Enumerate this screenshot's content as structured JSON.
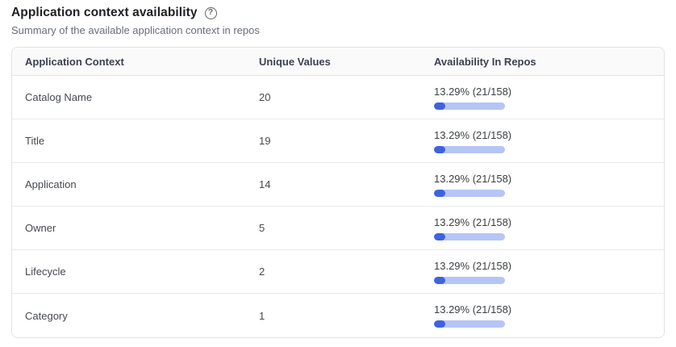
{
  "page": {
    "title": "Application context availability",
    "subtitle": "Summary of the available application context in repos",
    "help_icon_glyph": "?"
  },
  "table": {
    "columns": [
      "Application Context",
      "Unique Values",
      "Availability In Repos"
    ],
    "rows": [
      {
        "label": "Catalog Name",
        "unique_values": "20",
        "availability": {
          "label": "13.29% (21/158)",
          "percent": 13.29,
          "count": 21,
          "total": 158
        }
      },
      {
        "label": "Title",
        "unique_values": "19",
        "availability": {
          "label": "13.29% (21/158)",
          "percent": 13.29,
          "count": 21,
          "total": 158
        }
      },
      {
        "label": "Application",
        "unique_values": "14",
        "availability": {
          "label": "13.29% (21/158)",
          "percent": 13.29,
          "count": 21,
          "total": 158
        }
      },
      {
        "label": "Owner",
        "unique_values": "5",
        "availability": {
          "label": "13.29% (21/158)",
          "percent": 13.29,
          "count": 21,
          "total": 158
        }
      },
      {
        "label": "Lifecycle",
        "unique_values": "2",
        "availability": {
          "label": "13.29% (21/158)",
          "percent": 13.29,
          "count": 21,
          "total": 158
        }
      },
      {
        "label": "Category",
        "unique_values": "1",
        "availability": {
          "label": "13.29% (21/158)",
          "percent": 13.29,
          "count": 21,
          "total": 158
        }
      }
    ]
  },
  "colors": {
    "bar_fill": "#3d63e0",
    "bar_track": "#b5c6f6",
    "header_background": "#fafafb",
    "table_border": "#e1e2e7"
  }
}
